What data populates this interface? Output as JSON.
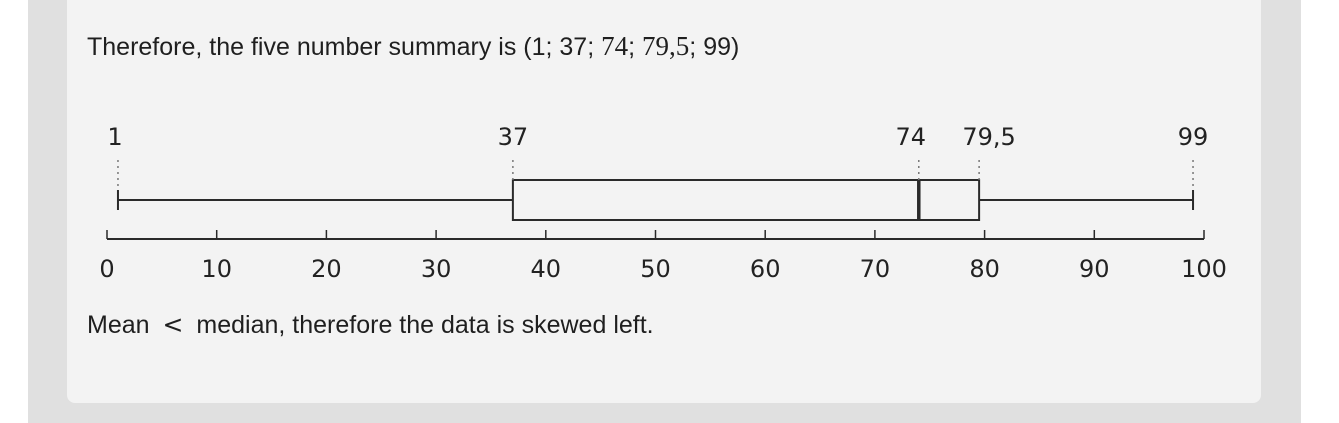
{
  "summary": {
    "prefix": "Therefore, the five number summary is (",
    "v1": "1",
    "sep": "; ",
    "v2": "37",
    "v3": "74",
    "v4": "79,5",
    "v5": "99",
    "suffix": ")"
  },
  "conclusion": {
    "start": "Mean",
    "operator": "<",
    "end": "median, therefore the data is skewed left."
  },
  "chart_data": {
    "type": "boxplot",
    "min": 1,
    "q1": 37,
    "median": 74,
    "q3": 79.5,
    "max": 99,
    "value_labels": [
      "1",
      "37",
      "74",
      "79,5",
      "99"
    ],
    "axis": {
      "range": [
        0,
        100
      ],
      "ticks": [
        0,
        10,
        20,
        30,
        40,
        50,
        60,
        70,
        80,
        90,
        100
      ],
      "tick_labels": [
        "0",
        "10",
        "20",
        "30",
        "40",
        "50",
        "60",
        "70",
        "80",
        "90",
        "100"
      ]
    },
    "colors": {
      "stroke": "#2a2a2a",
      "box_fill": "#f3f3f3",
      "guide": "#777777"
    }
  }
}
